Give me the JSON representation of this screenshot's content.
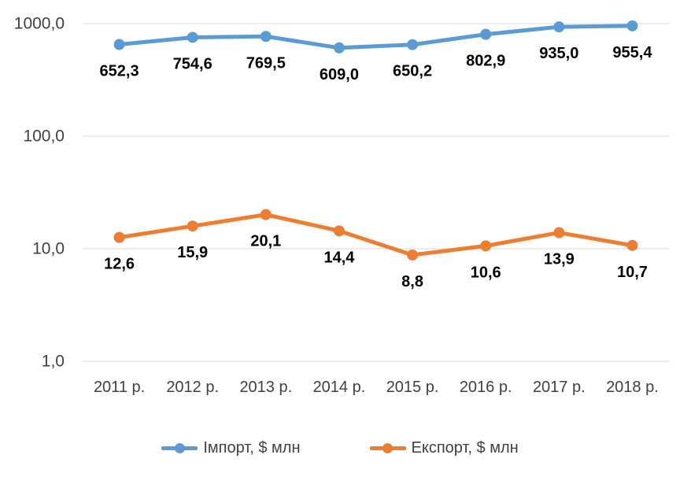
{
  "chart_data": {
    "type": "line",
    "scale": "log",
    "title": "",
    "xlabel": "",
    "ylabel": "",
    "categories": [
      "2011 р.",
      "2012 р.",
      "2013 р.",
      "2014 р.",
      "2015 р.",
      "2016 р.",
      "2017 р.",
      "2018 р."
    ],
    "series": [
      {
        "name": "Імпорт, $ млн",
        "color": "#5B9BD5",
        "values": [
          652.3,
          754.6,
          769.5,
          609.0,
          650.2,
          802.9,
          935.0,
          955.4
        ],
        "labels": [
          "652,3",
          "754,6",
          "769,5",
          "609,0",
          "650,2",
          "802,9",
          "935,0",
          "955,4"
        ]
      },
      {
        "name": "Експорт, $ млн",
        "color": "#ED7D31",
        "values": [
          12.6,
          15.9,
          20.1,
          14.4,
          8.8,
          10.6,
          13.9,
          10.7
        ],
        "labels": [
          "12,6",
          "15,9",
          "20,1",
          "14,4",
          "8,8",
          "10,6",
          "13,9",
          "10,7"
        ]
      }
    ],
    "y_axis": {
      "min": 1,
      "max": 1000,
      "ticks": [
        1000,
        100,
        10,
        1
      ],
      "tick_labels": [
        "1000,0",
        "100,0",
        "10,0",
        "1,0"
      ]
    },
    "grid": true,
    "legend_position": "bottom",
    "colors": {
      "gridline": "#D9D9D9",
      "axis_text": "#404040",
      "data_label": "#000000"
    }
  }
}
